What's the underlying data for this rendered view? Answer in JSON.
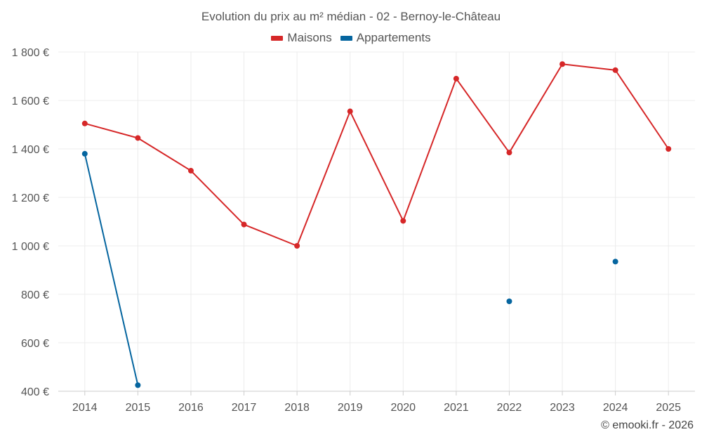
{
  "chart_data": {
    "type": "line",
    "title": "Evolution du prix au m² médian - 02 - Bernoy-le-Château",
    "xlabel": "",
    "ylabel": "",
    "categories": [
      "2014",
      "2015",
      "2016",
      "2017",
      "2018",
      "2019",
      "2020",
      "2021",
      "2022",
      "2023",
      "2024",
      "2025"
    ],
    "ylim": [
      400,
      1800
    ],
    "yticks": [
      400,
      600,
      800,
      1000,
      1200,
      1400,
      1600,
      1800
    ],
    "ytick_labels": [
      "400 €",
      "600 €",
      "800 €",
      "1 000 €",
      "1 200 €",
      "1 400 €",
      "1 600 €",
      "1 800 €"
    ],
    "grid": true,
    "legend_position": "top-center",
    "series": [
      {
        "name": "Maisons",
        "color": "#d62728",
        "values": [
          1505,
          1445,
          1310,
          1088,
          1000,
          1555,
          1103,
          1690,
          1385,
          1750,
          1725,
          1400
        ]
      },
      {
        "name": "Appartements",
        "color": "#05659f",
        "values": [
          1380,
          425,
          null,
          null,
          null,
          null,
          null,
          null,
          771,
          null,
          935,
          null
        ]
      }
    ]
  },
  "footer": "© emooki.fr - 2026"
}
